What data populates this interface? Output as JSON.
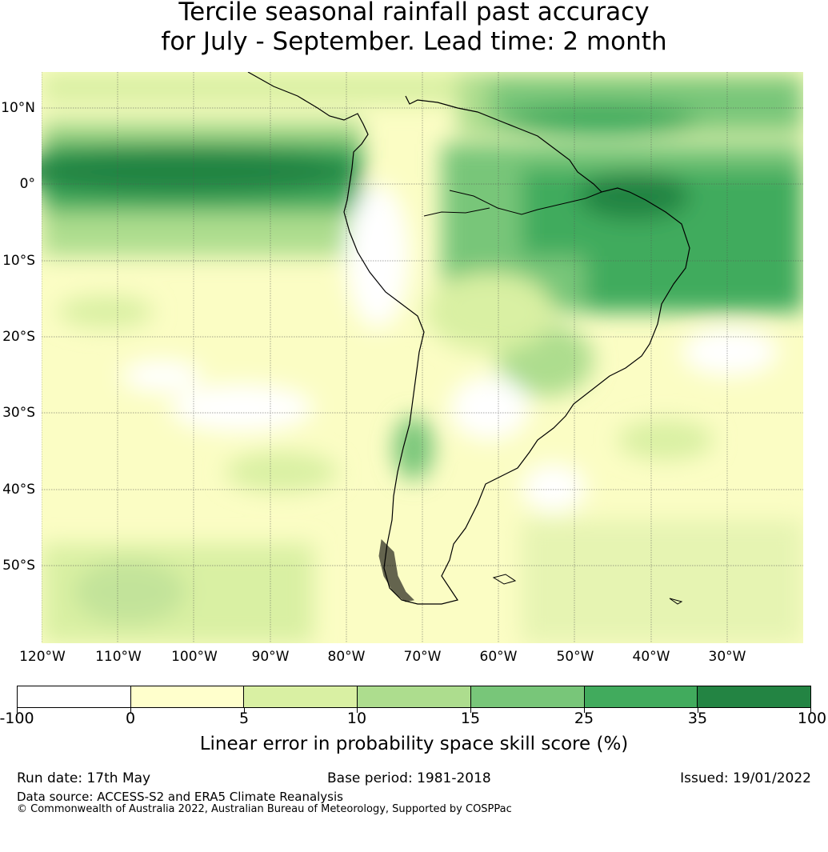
{
  "title": {
    "line1": "Tercile seasonal rainfall past accuracy",
    "line2": "for July - September. Lead time: 2 month"
  },
  "map": {
    "lat_labels": [
      "10°N",
      "0°",
      "10°S",
      "20°S",
      "30°S",
      "40°S",
      "50°S"
    ],
    "lon_labels": [
      "120°W",
      "110°W",
      "100°W",
      "90°W",
      "80°W",
      "70°W",
      "60°W",
      "50°W",
      "40°W",
      "30°W"
    ],
    "extent": {
      "lon_min": -120,
      "lon_max": -20,
      "lat_min": -60,
      "lat_max": 15
    }
  },
  "colorbar": {
    "ticks": [
      "-100",
      "0",
      "5",
      "10",
      "15",
      "25",
      "35",
      "100"
    ],
    "colors": [
      "#ffffff",
      "#ffffcc",
      "#d9f0a3",
      "#addd8e",
      "#78c679",
      "#41ab5d",
      "#238443"
    ],
    "label": "Linear error in probability space skill score (%)"
  },
  "footer": {
    "run_date": "Run date: 17th May",
    "base_period": "Base period: 1981-2018",
    "issued": "Issued: 19/01/2022",
    "data_source": "Data source: ACCESS-S2 and ERA5 Climate Reanalysis",
    "copyright": "© Commonwealth of Australia 2022, Australian Bureau of Meteorology, Supported by COSPPac"
  }
}
